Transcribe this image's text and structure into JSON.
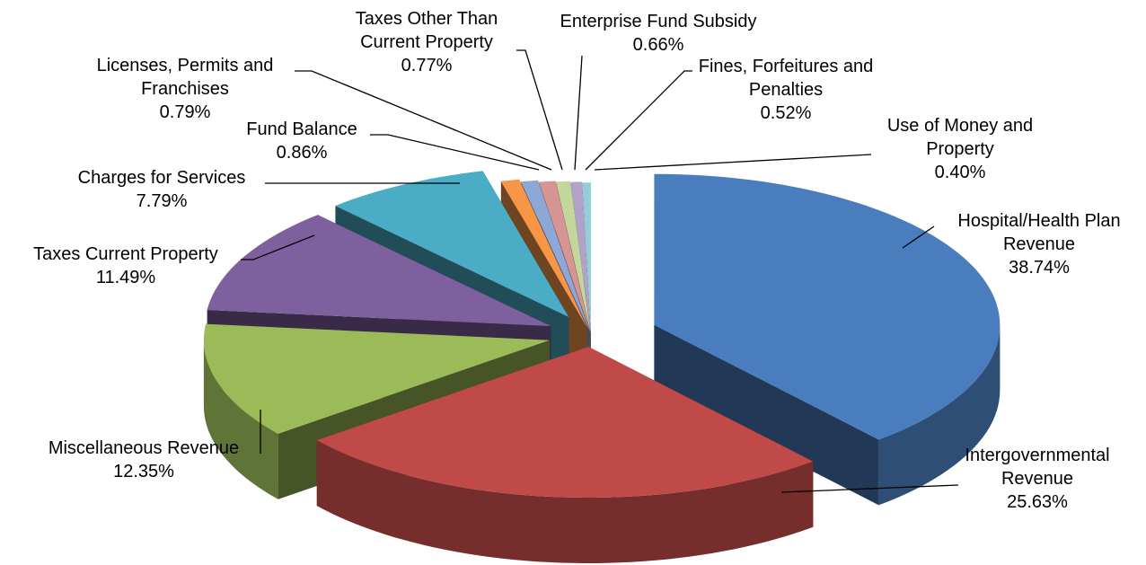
{
  "chart_data": {
    "type": "pie",
    "title": "",
    "style": "3d-exploded",
    "slices": [
      {
        "label": [
          "Hospital/Health Plan",
          "Revenue"
        ],
        "value": 38.74,
        "pct": "38.74%",
        "color": "#4A7DBE"
      },
      {
        "label": [
          "Intergovernmental",
          "Revenue"
        ],
        "value": 25.63,
        "pct": "25.63%",
        "color": "#BF4A48"
      },
      {
        "label": [
          "Miscellaneous Revenue"
        ],
        "value": 12.35,
        "pct": "12.35%",
        "color": "#9BBB59"
      },
      {
        "label": [
          "Taxes Current Property"
        ],
        "value": 11.49,
        "pct": "11.49%",
        "color": "#7F609E"
      },
      {
        "label": [
          "Charges for Services"
        ],
        "value": 7.79,
        "pct": "7.79%",
        "color": "#4AACC5"
      },
      {
        "label": [
          "Fund Balance"
        ],
        "value": 0.86,
        "pct": "0.86%",
        "color": "#F79646"
      },
      {
        "label": [
          "Licenses, Permits and",
          "Franchises"
        ],
        "value": 0.79,
        "pct": "0.79%",
        "color": "#8DA8D6"
      },
      {
        "label": [
          "Taxes Other Than",
          "Current Property"
        ],
        "value": 0.77,
        "pct": "0.77%",
        "color": "#D69493"
      },
      {
        "label": [
          "Enterprise Fund Subsidy"
        ],
        "value": 0.66,
        "pct": "0.66%",
        "color": "#C3D69B"
      },
      {
        "label": [
          "Fines, Forfeitures and",
          "Penalties"
        ],
        "value": 0.52,
        "pct": "0.52%",
        "color": "#B3A2C7"
      },
      {
        "label": [
          "Use of Money and",
          "Property"
        ],
        "value": 0.4,
        "pct": "0.40%",
        "color": "#93CDDD"
      }
    ]
  }
}
